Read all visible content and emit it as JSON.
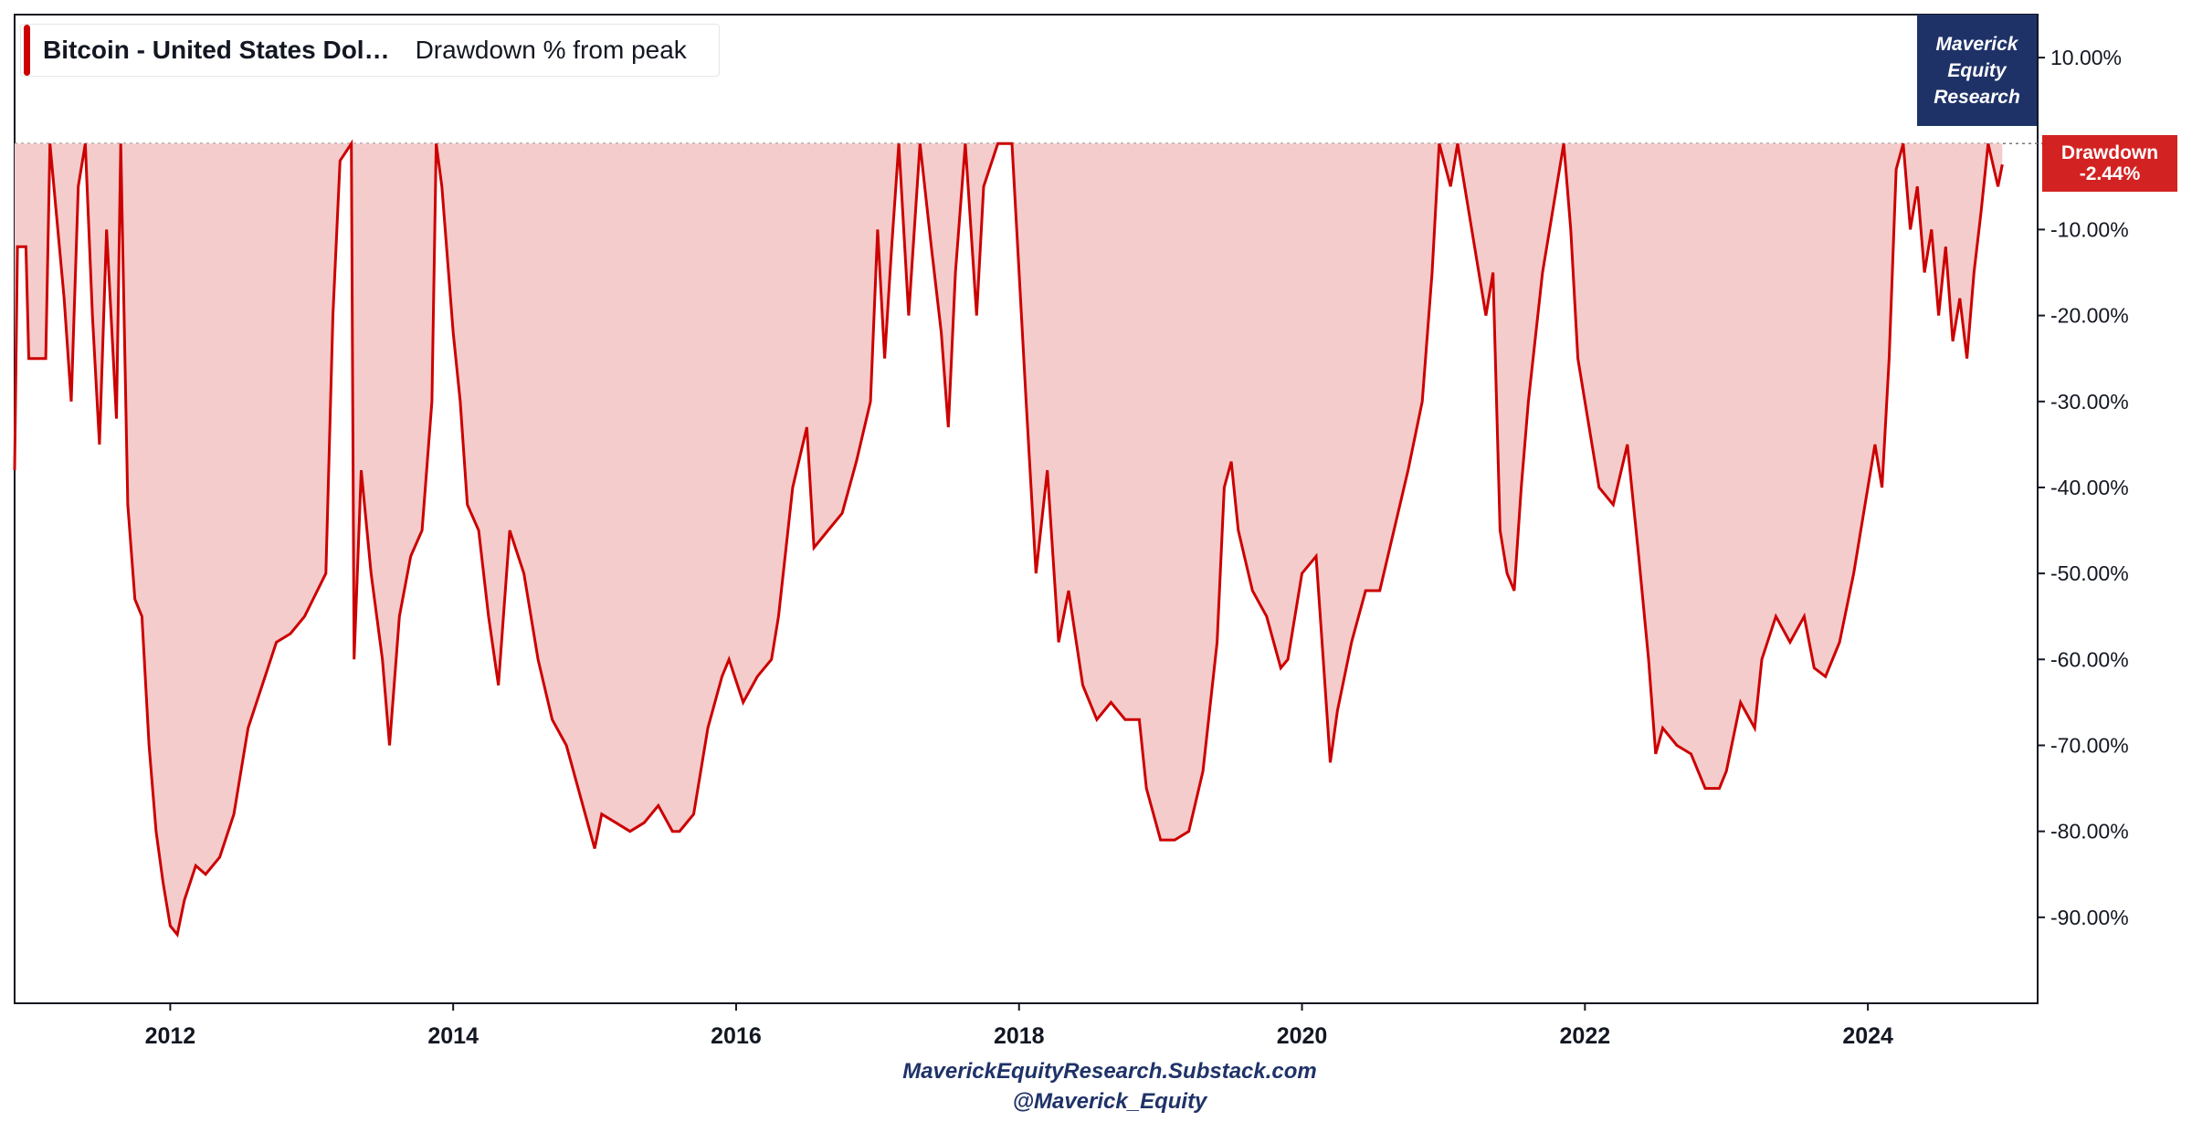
{
  "colors": {
    "series_line": "#cc0000",
    "series_fill": "#f5cccc",
    "brand_bg": "#1f3268",
    "badge_bg": "#d32222",
    "axis_text": "#131722"
  },
  "legend": {
    "series_name": "Bitcoin - United States Dol…",
    "metric_label": "Drawdown % from peak"
  },
  "branding": {
    "lines": [
      "Maverick",
      "Equity",
      "Research"
    ],
    "footer_site": "MaverickEquityResearch.Substack.com",
    "footer_handle": "@Maverick_Equity"
  },
  "last_value_badge": {
    "label": "Drawdown",
    "value": "-2.44%"
  },
  "chart_data": {
    "type": "area",
    "title": "",
    "xlabel": "",
    "ylabel": "",
    "xlim": [
      2010.9,
      2025.2
    ],
    "ylim": [
      -100,
      15
    ],
    "x_ticks": [
      2012,
      2014,
      2016,
      2018,
      2020,
      2022,
      2024
    ],
    "x_tick_labels": [
      "2012",
      "2014",
      "2016",
      "2018",
      "2020",
      "2022",
      "2024"
    ],
    "y_ticks": [
      10,
      -10,
      -20,
      -30,
      -40,
      -50,
      -60,
      -70,
      -80,
      -90
    ],
    "y_tick_labels": [
      "10.00%",
      "-10.00%",
      "-20.00%",
      "-30.00%",
      "-40.00%",
      "-50.00%",
      "-60.00%",
      "-70.00%",
      "-80.00%",
      "-90.00%"
    ],
    "reference_line": {
      "y": 0,
      "style": "dotted"
    },
    "grid": false,
    "legend_position": "top-left",
    "series": [
      {
        "name": "Bitcoin - United States Dol…",
        "points": [
          [
            2010.9,
            -38
          ],
          [
            2010.92,
            -12
          ],
          [
            2010.98,
            -12
          ],
          [
            2011.0,
            -25
          ],
          [
            2011.12,
            -25
          ],
          [
            2011.15,
            0
          ],
          [
            2011.25,
            -18
          ],
          [
            2011.3,
            -30
          ],
          [
            2011.35,
            -5
          ],
          [
            2011.4,
            0
          ],
          [
            2011.45,
            -20
          ],
          [
            2011.5,
            -35
          ],
          [
            2011.55,
            -10
          ],
          [
            2011.62,
            -32
          ],
          [
            2011.65,
            0
          ],
          [
            2011.7,
            -42
          ],
          [
            2011.75,
            -53
          ],
          [
            2011.8,
            -55
          ],
          [
            2011.85,
            -70
          ],
          [
            2011.9,
            -80
          ],
          [
            2011.95,
            -86
          ],
          [
            2012.0,
            -91
          ],
          [
            2012.05,
            -92
          ],
          [
            2012.1,
            -88
          ],
          [
            2012.18,
            -84
          ],
          [
            2012.25,
            -85
          ],
          [
            2012.35,
            -83
          ],
          [
            2012.45,
            -78
          ],
          [
            2012.55,
            -68
          ],
          [
            2012.65,
            -63
          ],
          [
            2012.75,
            -58
          ],
          [
            2012.85,
            -57
          ],
          [
            2012.95,
            -55
          ],
          [
            2013.1,
            -50
          ],
          [
            2013.15,
            -20
          ],
          [
            2013.2,
            -2
          ],
          [
            2013.28,
            0
          ],
          [
            2013.3,
            -60
          ],
          [
            2013.35,
            -38
          ],
          [
            2013.42,
            -50
          ],
          [
            2013.5,
            -60
          ],
          [
            2013.55,
            -70
          ],
          [
            2013.62,
            -55
          ],
          [
            2013.7,
            -48
          ],
          [
            2013.78,
            -45
          ],
          [
            2013.85,
            -30
          ],
          [
            2013.88,
            0
          ],
          [
            2013.92,
            -5
          ],
          [
            2014.0,
            -22
          ],
          [
            2014.05,
            -30
          ],
          [
            2014.1,
            -42
          ],
          [
            2014.18,
            -45
          ],
          [
            2014.25,
            -55
          ],
          [
            2014.32,
            -63
          ],
          [
            2014.4,
            -45
          ],
          [
            2014.5,
            -50
          ],
          [
            2014.6,
            -60
          ],
          [
            2014.7,
            -67
          ],
          [
            2014.8,
            -70
          ],
          [
            2014.9,
            -76
          ],
          [
            2015.0,
            -82
          ],
          [
            2015.05,
            -78
          ],
          [
            2015.15,
            -79
          ],
          [
            2015.25,
            -80
          ],
          [
            2015.35,
            -79
          ],
          [
            2015.45,
            -77
          ],
          [
            2015.55,
            -80
          ],
          [
            2015.6,
            -80
          ],
          [
            2015.7,
            -78
          ],
          [
            2015.8,
            -68
          ],
          [
            2015.9,
            -62
          ],
          [
            2015.95,
            -60
          ],
          [
            2016.05,
            -65
          ],
          [
            2016.15,
            -62
          ],
          [
            2016.25,
            -60
          ],
          [
            2016.3,
            -55
          ],
          [
            2016.4,
            -40
          ],
          [
            2016.5,
            -33
          ],
          [
            2016.55,
            -47
          ],
          [
            2016.65,
            -45
          ],
          [
            2016.75,
            -43
          ],
          [
            2016.85,
            -37
          ],
          [
            2016.95,
            -30
          ],
          [
            2017.0,
            -10
          ],
          [
            2017.05,
            -25
          ],
          [
            2017.1,
            -12
          ],
          [
            2017.15,
            0
          ],
          [
            2017.22,
            -20
          ],
          [
            2017.3,
            0
          ],
          [
            2017.38,
            -12
          ],
          [
            2017.45,
            -22
          ],
          [
            2017.5,
            -33
          ],
          [
            2017.55,
            -15
          ],
          [
            2017.62,
            0
          ],
          [
            2017.7,
            -20
          ],
          [
            2017.75,
            -5
          ],
          [
            2017.85,
            0
          ],
          [
            2017.95,
            0
          ],
          [
            2018.0,
            -15
          ],
          [
            2018.05,
            -30
          ],
          [
            2018.12,
            -50
          ],
          [
            2018.2,
            -38
          ],
          [
            2018.28,
            -58
          ],
          [
            2018.35,
            -52
          ],
          [
            2018.45,
            -63
          ],
          [
            2018.55,
            -67
          ],
          [
            2018.65,
            -65
          ],
          [
            2018.75,
            -67
          ],
          [
            2018.85,
            -67
          ],
          [
            2018.9,
            -75
          ],
          [
            2019.0,
            -81
          ],
          [
            2019.1,
            -81
          ],
          [
            2019.2,
            -80
          ],
          [
            2019.3,
            -73
          ],
          [
            2019.4,
            -58
          ],
          [
            2019.45,
            -40
          ],
          [
            2019.5,
            -37
          ],
          [
            2019.55,
            -45
          ],
          [
            2019.65,
            -52
          ],
          [
            2019.75,
            -55
          ],
          [
            2019.85,
            -61
          ],
          [
            2019.9,
            -60
          ],
          [
            2020.0,
            -50
          ],
          [
            2020.1,
            -48
          ],
          [
            2020.15,
            -60
          ],
          [
            2020.2,
            -72
          ],
          [
            2020.25,
            -66
          ],
          [
            2020.35,
            -58
          ],
          [
            2020.45,
            -52
          ],
          [
            2020.55,
            -52
          ],
          [
            2020.65,
            -45
          ],
          [
            2020.75,
            -38
          ],
          [
            2020.85,
            -30
          ],
          [
            2020.92,
            -15
          ],
          [
            2020.97,
            0
          ],
          [
            2021.05,
            -5
          ],
          [
            2021.1,
            0
          ],
          [
            2021.2,
            -10
          ],
          [
            2021.3,
            -20
          ],
          [
            2021.35,
            -15
          ],
          [
            2021.4,
            -45
          ],
          [
            2021.45,
            -50
          ],
          [
            2021.5,
            -52
          ],
          [
            2021.55,
            -40
          ],
          [
            2021.6,
            -30
          ],
          [
            2021.7,
            -15
          ],
          [
            2021.8,
            -5
          ],
          [
            2021.85,
            0
          ],
          [
            2021.9,
            -10
          ],
          [
            2021.95,
            -25
          ],
          [
            2022.0,
            -30
          ],
          [
            2022.1,
            -40
          ],
          [
            2022.2,
            -42
          ],
          [
            2022.3,
            -35
          ],
          [
            2022.38,
            -48
          ],
          [
            2022.45,
            -60
          ],
          [
            2022.5,
            -71
          ],
          [
            2022.55,
            -68
          ],
          [
            2022.65,
            -70
          ],
          [
            2022.75,
            -71
          ],
          [
            2022.85,
            -75
          ],
          [
            2022.95,
            -75
          ],
          [
            2023.0,
            -73
          ],
          [
            2023.1,
            -65
          ],
          [
            2023.2,
            -68
          ],
          [
            2023.25,
            -60
          ],
          [
            2023.35,
            -55
          ],
          [
            2023.45,
            -58
          ],
          [
            2023.55,
            -55
          ],
          [
            2023.62,
            -61
          ],
          [
            2023.7,
            -62
          ],
          [
            2023.8,
            -58
          ],
          [
            2023.9,
            -50
          ],
          [
            2024.0,
            -40
          ],
          [
            2024.05,
            -35
          ],
          [
            2024.1,
            -40
          ],
          [
            2024.15,
            -25
          ],
          [
            2024.2,
            -3
          ],
          [
            2024.25,
            0
          ],
          [
            2024.3,
            -10
          ],
          [
            2024.35,
            -5
          ],
          [
            2024.4,
            -15
          ],
          [
            2024.45,
            -10
          ],
          [
            2024.5,
            -20
          ],
          [
            2024.55,
            -12
          ],
          [
            2024.6,
            -23
          ],
          [
            2024.65,
            -18
          ],
          [
            2024.7,
            -25
          ],
          [
            2024.75,
            -15
          ],
          [
            2024.8,
            -8
          ],
          [
            2024.85,
            0
          ],
          [
            2024.92,
            -5
          ],
          [
            2024.95,
            -2.44
          ]
        ]
      }
    ]
  }
}
